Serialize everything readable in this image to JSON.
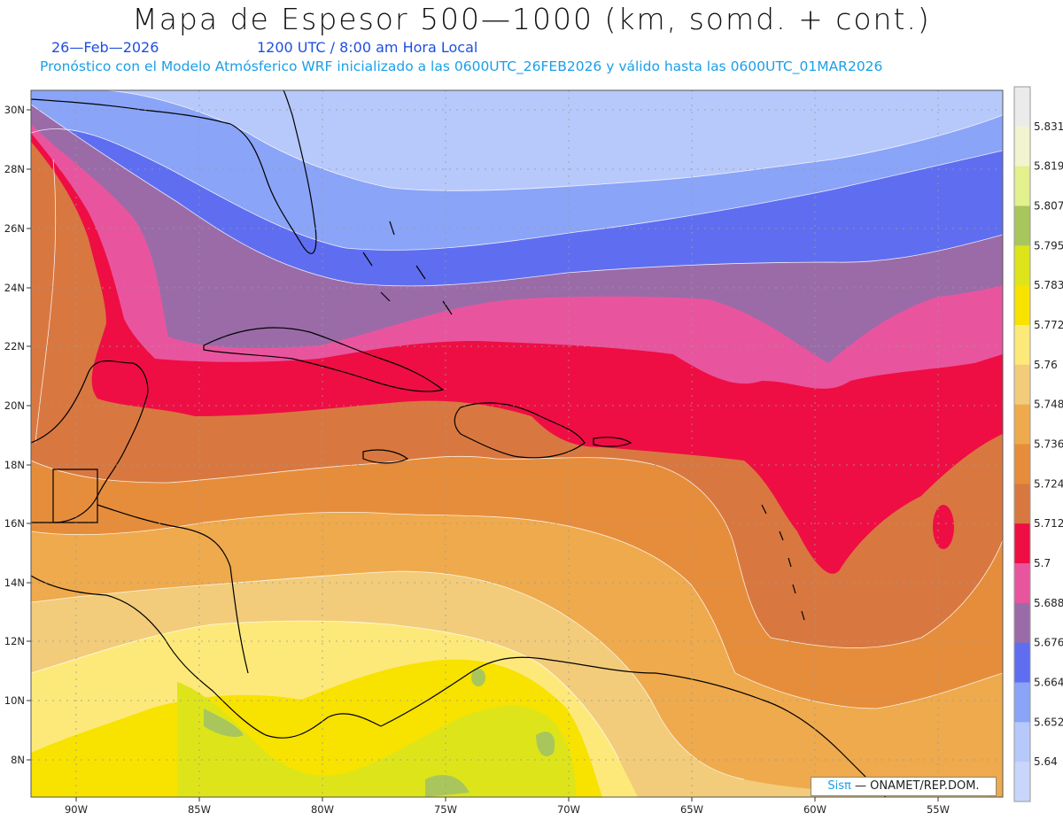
{
  "header": {
    "title": "Mapa de Espesor 500—1000 (km, somd. + cont.)",
    "date": "26—Feb—2026",
    "time": "1200 UTC / 8:00 am Hora Local",
    "forecast": "Pronóstico con el Modelo Atmósferico WRF inicializado a las 0600UTC_26FEB2026 y válido hasta las  0600UTC_01MAR2026"
  },
  "map": {
    "lat_labels": [
      "30N",
      "28N",
      "26N",
      "24N",
      "22N",
      "20N",
      "18N",
      "16N",
      "14N",
      "12N",
      "10N",
      "8N"
    ],
    "lon_labels": [
      "90W",
      "85W",
      "80W",
      "75W",
      "70W",
      "65W",
      "60W",
      "55W"
    ],
    "lat_range": [
      6.8,
      30.7
    ],
    "lon_range": [
      -91.8,
      -52.4
    ]
  },
  "colorbar": {
    "levels": [
      "5.831",
      "5.819",
      "5.807",
      "5.795",
      "5.783",
      "5.772",
      "5.76",
      "5.748",
      "5.736",
      "5.724",
      "5.712",
      "5.7",
      "5.688",
      "5.676",
      "5.664",
      "5.652",
      "5.64"
    ],
    "colors": [
      "#ebebeb",
      "#f1f4cf",
      "#e2f08e",
      "#a9c65c",
      "#dde51a",
      "#f7e200",
      "#fde97a",
      "#f2cc7a",
      "#eeaa4c",
      "#e68d3c",
      "#d87840",
      "#ee0e44",
      "#e8559e",
      "#9b6ba8",
      "#5f6ef0",
      "#8aa4f8",
      "#b7c8fb",
      "#c9d6fc"
    ]
  },
  "credit": {
    "brand": "Sisπ",
    "text": "— ONAMET/REP.DOM."
  }
}
